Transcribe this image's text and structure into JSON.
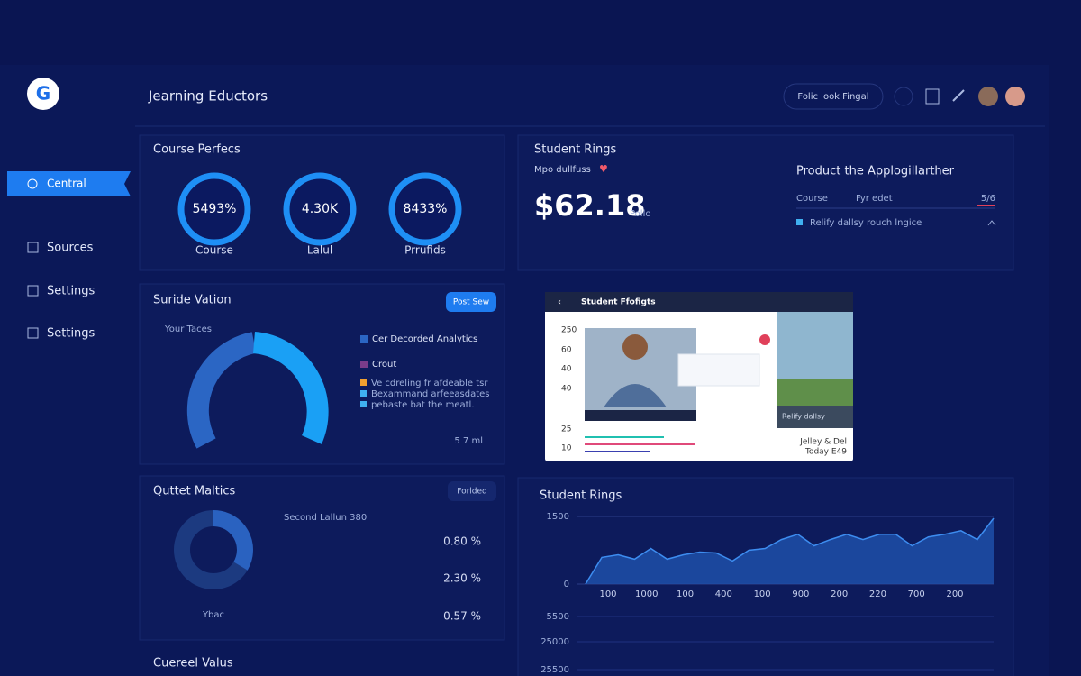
{
  "sidebar": {
    "logo": "G",
    "nav": [
      "Central",
      "Sources",
      "Settings",
      "Settings"
    ]
  },
  "header": {
    "title": "Jearning Eductors",
    "button": "Folic look Fingal"
  },
  "course_perfecs": {
    "title": "Course Perfecs",
    "rings": [
      {
        "value": "5493%",
        "label": "Course"
      },
      {
        "value": "4.30K",
        "label": "Lalul"
      },
      {
        "value": "8433%",
        "label": "Prrufids"
      }
    ]
  },
  "student_rings": {
    "title": "Student Rings",
    "subtitle": "Mpo dullfuss",
    "amount": "$62.18",
    "amount_note": "Pollo",
    "product": {
      "title": "Product the Applogillarther",
      "row": [
        "Course",
        "Fyr edet",
        "5/6"
      ],
      "note": "Relify dallsy rouch lngice"
    }
  },
  "suride": {
    "title": "Suride Vation",
    "button": "Post Sew",
    "caption": "Your Taces",
    "legend": [
      "Cer Decorded Analytics",
      "Crout"
    ],
    "items": [
      "Ve cdreling fr afdeable tsr",
      "Bexammand arfeeasdates",
      "pebaste bat the meatl."
    ],
    "footer": "5 7 ml"
  },
  "video": {
    "title": "Student Ffofigts",
    "axis": [
      "250",
      "60",
      "40",
      "40",
      "25",
      "10"
    ],
    "caption": "Relify dallsy",
    "name": "Jelley & Del",
    "date": "Today E49"
  },
  "outlet": {
    "title": "Quttet Maltics",
    "button": "Forlded",
    "note": "Second Lallun 380",
    "values": [
      "0.80 %",
      "2.30 %",
      "0.57 %"
    ],
    "caption": "Ybac"
  },
  "chart_data": {
    "type": "area",
    "title": "Student Rings",
    "values": [
      0,
      592,
      651,
      553,
      789,
      553,
      651,
      710,
      691,
      513,
      750,
      789,
      987,
      1105,
      849,
      987,
      1105,
      987,
      1105,
      1105,
      849,
      1046,
      1105,
      1184,
      987,
      1461
    ],
    "xtick_labels": [
      "100",
      "1000",
      "100",
      "400",
      "100",
      "900",
      "200",
      "220",
      "700",
      "200"
    ],
    "ylim": [
      0,
      1500
    ],
    "yticks": [
      0,
      1500
    ],
    "color": "#1f4fa8",
    "line_color": "#3d8df0",
    "grid": true
  },
  "lower_labels": [
    "5500",
    "25000",
    "25500"
  ],
  "bottom_title": "Cuereel Valus"
}
